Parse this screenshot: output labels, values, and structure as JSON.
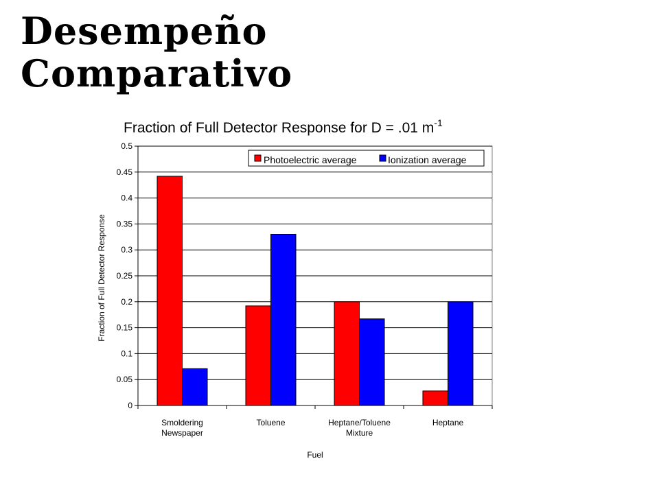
{
  "slide": {
    "title_line1": "Desempeño",
    "title_line2": "Comparativo"
  },
  "chart_data": {
    "type": "bar",
    "title": "Fraction of Full Detector Response for D = .01 m",
    "title_superscript": "-1",
    "xlabel": "Fuel",
    "ylabel": "Fraction of Full Detector Response",
    "categories": [
      [
        "Smoldering",
        "Newspaper"
      ],
      [
        "Toluene"
      ],
      [
        "Heptane/Toluene",
        "Mixture"
      ],
      [
        "Heptane"
      ]
    ],
    "series": [
      {
        "name": "Photoelectric average",
        "color": "#ff0000",
        "values": [
          0.442,
          0.192,
          0.2,
          0.028
        ]
      },
      {
        "name": "Ionization average",
        "color": "#0000ff",
        "values": [
          0.071,
          0.33,
          0.167,
          0.2
        ]
      }
    ],
    "ylim": [
      0,
      0.5
    ],
    "yticks": [
      "0",
      "0.05",
      "0.1",
      "0.15",
      "0.2",
      "0.25",
      "0.3",
      "0.35",
      "0.4",
      "0.45",
      "0.5"
    ],
    "grid": true,
    "legend_position": "top-right"
  }
}
